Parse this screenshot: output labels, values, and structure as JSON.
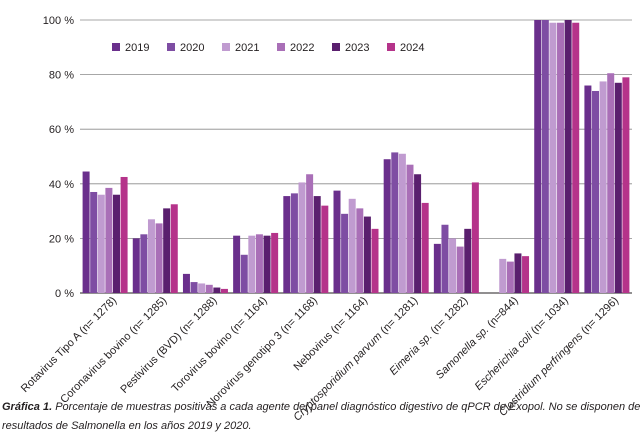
{
  "chart_data": {
    "type": "bar",
    "title": "",
    "xlabel": "",
    "ylabel": "",
    "ylim": [
      0,
      100
    ],
    "y_ticks": [
      0,
      20,
      40,
      60,
      80,
      100
    ],
    "y_tick_format": "{v} %",
    "grid": "horizontal",
    "legend_position": "top-left",
    "categories": [
      "Rotavirus Tipo A (n= 1278)",
      "Coronavirus bovino (n= 1285)",
      "Pestivirus (BVD) (n= 1288)",
      "Torovirus bovino (n= 1164)",
      "Norovirus genotipo 3 (n= 1168)",
      "Nebovirus (n= 1164)",
      "Cryptosporidium parvum (n= 1281)",
      "Eimeria sp. (n= 1282)",
      "Samonella sp. (n=844)",
      "Escherichia coli (n= 1034)",
      "Clostridium perfringens (n= 1296)"
    ],
    "italic_categories": [
      "Cryptosporidium parvum",
      "Eimeria sp.",
      "Samonella sp.",
      "Escherichia coli",
      "Clostridium perfringens"
    ],
    "series": [
      {
        "name": "2019",
        "color": "#6a2f8c",
        "values": [
          44.5,
          20,
          7,
          21,
          35.5,
          37.5,
          49,
          18,
          null,
          100,
          76
        ]
      },
      {
        "name": "2020",
        "color": "#7e4da3",
        "values": [
          37,
          21.5,
          4,
          14,
          36.5,
          29,
          51.5,
          25,
          null,
          100,
          74
        ]
      },
      {
        "name": "2021",
        "color": "#c09bd0",
        "values": [
          36,
          27,
          3.5,
          21,
          40.5,
          34.5,
          51,
          20,
          12.5,
          99,
          77.5
        ]
      },
      {
        "name": "2022",
        "color": "#a96fb7",
        "values": [
          38.5,
          25.5,
          3,
          21.5,
          43.5,
          31,
          47,
          17,
          11.5,
          99,
          80.5
        ]
      },
      {
        "name": "2023",
        "color": "#5a1f6e",
        "values": [
          36,
          31,
          2,
          21,
          35.5,
          28,
          43.5,
          23.5,
          14.5,
          100,
          77
        ]
      },
      {
        "name": "2024",
        "color": "#b5338a",
        "values": [
          42.5,
          32.5,
          1.5,
          22,
          32,
          23.5,
          33,
          40.5,
          13.5,
          99,
          79
        ]
      }
    ]
  },
  "caption": {
    "lead": "Gráfica 1.",
    "line1": "Porcentaje de muestras positivas a cada agente del panel diagnóstico digestivo de qPCR de Exopol. No se disponen de",
    "line2": "resultados de Salmonella en los años 2019 y 2020."
  }
}
